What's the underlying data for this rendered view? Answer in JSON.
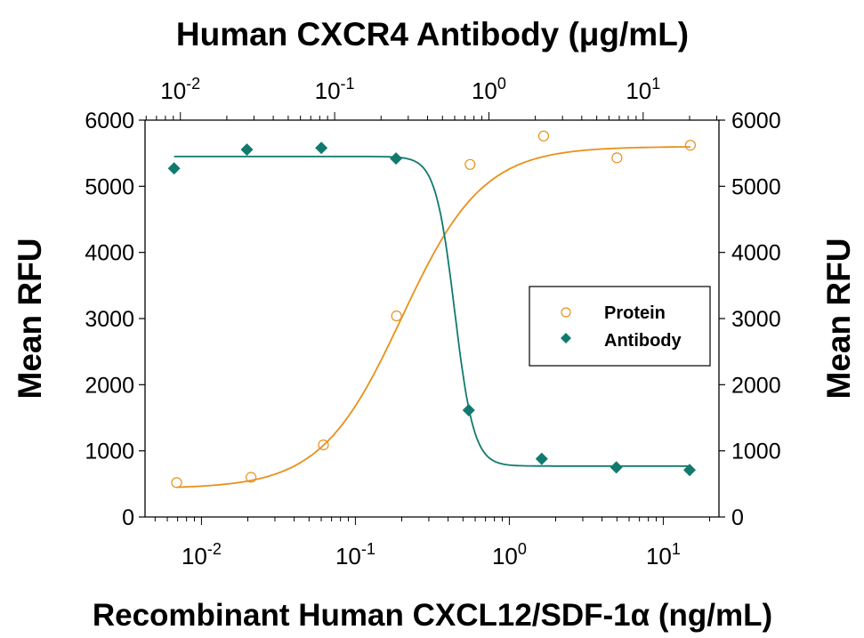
{
  "chart_data": {
    "type": "scatter",
    "title": "Human CXCR4 Antibody (μg/mL)",
    "xlabel": "Recombinant Human CXCL12/SDF-1α (ng/mL)",
    "ylabel": "Mean RFU",
    "ylabel_right": "Mean RFU",
    "x_scale": "log",
    "x_bottom_lim": [
      0.0043,
      23
    ],
    "x_top_lim": [
      0.0059,
      31
    ],
    "ylim": [
      0,
      6000
    ],
    "y_ticks": [
      0,
      1000,
      2000,
      3000,
      4000,
      5000,
      6000
    ],
    "x_bottom_tick_labels": [
      {
        "base": "10",
        "exp": "-2"
      },
      {
        "base": "10",
        "exp": "-1"
      },
      {
        "base": "10",
        "exp": "0"
      },
      {
        "base": "10",
        "exp": "1"
      }
    ],
    "x_top_tick_labels": [
      {
        "base": "10",
        "exp": "-2"
      },
      {
        "base": "10",
        "exp": "-1"
      },
      {
        "base": "10",
        "exp": "0"
      },
      {
        "base": "10",
        "exp": "1"
      }
    ],
    "grid": false,
    "legend_placement": "center-right",
    "series": [
      {
        "name": "Protein",
        "axis": "bottom",
        "marker": "open-circle",
        "color": "#E8901A",
        "x": [
          0.0069,
          0.021,
          0.062,
          0.185,
          0.556,
          1.67,
          5,
          15
        ],
        "y": [
          520,
          600,
          1090,
          3040,
          5330,
          5760,
          5430,
          5620
        ],
        "fit": {
          "bottom": 430,
          "top": 5600,
          "ec50": 0.2,
          "hill": 1.65
        }
      },
      {
        "name": "Antibody",
        "axis": "top",
        "marker": "filled-diamond",
        "color": "#117A6E",
        "x": [
          0.0091,
          0.027,
          0.082,
          0.25,
          0.74,
          2.2,
          6.7,
          20
        ],
        "y": [
          5270,
          5555,
          5580,
          5420,
          1615,
          880,
          750,
          710
        ],
        "fit": {
          "bottom": 770,
          "top": 5450,
          "ec50": 0.6,
          "hill": 7
        }
      }
    ]
  }
}
